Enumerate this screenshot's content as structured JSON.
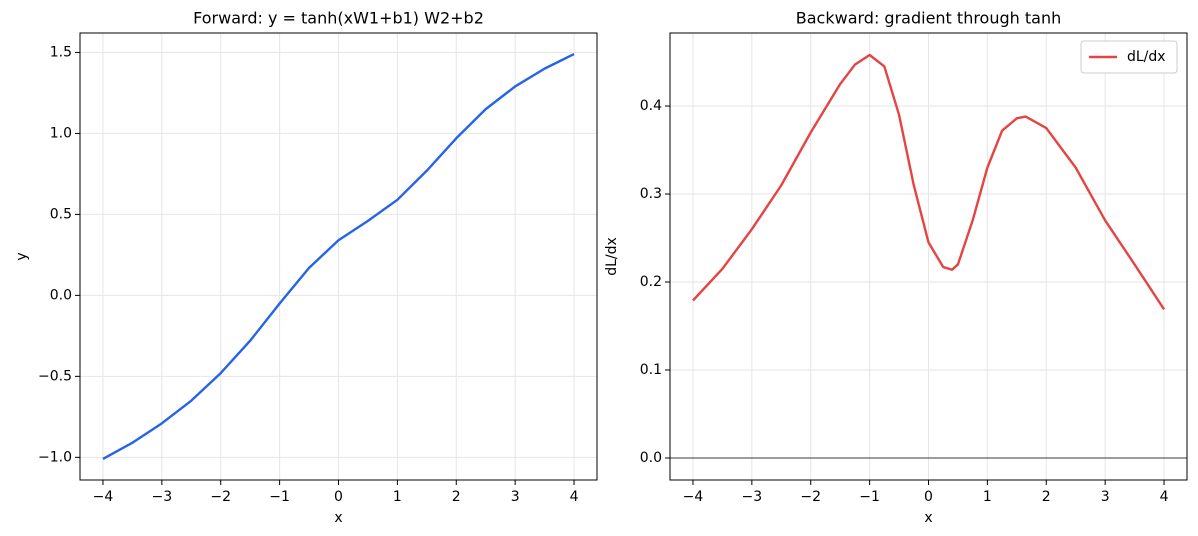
{
  "chart_data": [
    {
      "type": "line",
      "title": "Forward: y = tanh(xW1+b1) W2+b2",
      "x_label": "x",
      "y_label": "y",
      "x": [
        -4,
        -3.5,
        -3,
        -2.5,
        -2,
        -1.5,
        -1,
        -0.5,
        0,
        0.5,
        1,
        1.5,
        2,
        2.5,
        3,
        3.5,
        4
      ],
      "series": [
        {
          "color": "#2563eb",
          "values": [
            -1.01,
            -0.91,
            -0.79,
            -0.65,
            -0.48,
            -0.28,
            -0.05,
            0.17,
            0.34,
            0.46,
            0.59,
            0.77,
            0.97,
            1.15,
            1.29,
            1.4,
            1.49
          ]
        }
      ],
      "xlim": [
        -4.39,
        4.39
      ],
      "ylim": [
        -1.14,
        1.62
      ],
      "xticks": [
        {
          "value": -4,
          "label": "−4"
        },
        {
          "value": -3,
          "label": "−3"
        },
        {
          "value": -2,
          "label": "−2"
        },
        {
          "value": -1,
          "label": "−1"
        },
        0,
        1,
        2,
        3,
        4
      ],
      "yticks": [
        {
          "value": -1,
          "label": "−1.0"
        },
        {
          "value": -0.5,
          "label": "−0.5"
        },
        {
          "value": 0,
          "label": "0.0"
        },
        0.5,
        {
          "value": 1,
          "label": "1.0"
        },
        1.5
      ],
      "grid": true
    },
    {
      "type": "line",
      "title": "Backward: gradient through tanh",
      "x_label": "x",
      "y_label": "dL/dx",
      "x": [
        -4,
        -3.5,
        -3,
        -2.5,
        -2,
        -1.5,
        -1.25,
        -1,
        -0.75,
        -0.5,
        -0.25,
        0,
        0.25,
        0.4,
        0.5,
        0.75,
        1,
        1.25,
        1.5,
        1.65,
        2,
        2.5,
        3,
        3.5,
        4
      ],
      "series": [
        {
          "name": "dL/dx",
          "color": "#e64343",
          "values": [
            0.179,
            0.215,
            0.26,
            0.31,
            0.37,
            0.425,
            0.447,
            0.458,
            0.445,
            0.39,
            0.31,
            0.245,
            0.217,
            0.214,
            0.22,
            0.27,
            0.33,
            0.372,
            0.386,
            0.388,
            0.375,
            0.33,
            0.27,
            0.22,
            0.169
          ]
        }
      ],
      "xlim": [
        -4.39,
        4.39
      ],
      "ylim": [
        -0.025,
        0.483
      ],
      "xticks": [
        {
          "value": -4,
          "label": "−4"
        },
        {
          "value": -3,
          "label": "−3"
        },
        {
          "value": -2,
          "label": "−2"
        },
        {
          "value": -1,
          "label": "−1"
        },
        0,
        1,
        2,
        3,
        4
      ],
      "yticks": [
        {
          "value": 0,
          "label": "0.0"
        },
        0.1,
        0.2,
        0.3,
        0.4
      ],
      "hlines": [
        0
      ],
      "grid": true,
      "legend": "upper right"
    }
  ]
}
